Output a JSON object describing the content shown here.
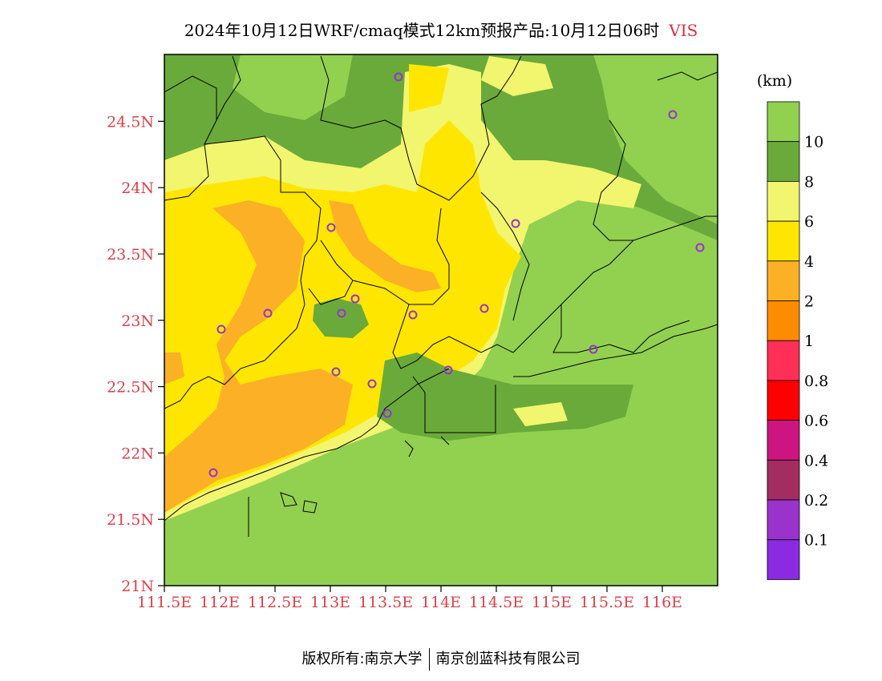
{
  "title": {
    "text": "2024年10月12日WRF/cmaq模式12km预报产品:10月12日06时",
    "variable": "VIS"
  },
  "map": {
    "lat_ticks": [
      "21N",
      "21.5N",
      "22N",
      "22.5N",
      "23N",
      "23.5N",
      "24N",
      "24.5N"
    ],
    "lon_ticks": [
      "111.5E",
      "112E",
      "112.5E",
      "113E",
      "113.5E",
      "114E",
      "114.5E",
      "115E",
      "115.5E",
      "116E"
    ],
    "axis_label_color": "#e0404a",
    "station_color": "#9933cc"
  },
  "legend": {
    "unit": "(km)",
    "colors": [
      "#92d050",
      "#6aaa3a",
      "#f2f56e",
      "#ffe600",
      "#fbb026",
      "#ff8c00",
      "#ff2f58",
      "#ff0000",
      "#cc1580",
      "#a32d61",
      "#9933cc",
      "#8a2be2"
    ],
    "labels": [
      "10",
      "8",
      "6",
      "4",
      "2",
      "1",
      "0.8",
      "0.6",
      "0.4",
      "0.2",
      "0.1"
    ]
  },
  "footer": {
    "left": "版权所有:南京大学",
    "right": "南京创蓝科技有限公司"
  }
}
